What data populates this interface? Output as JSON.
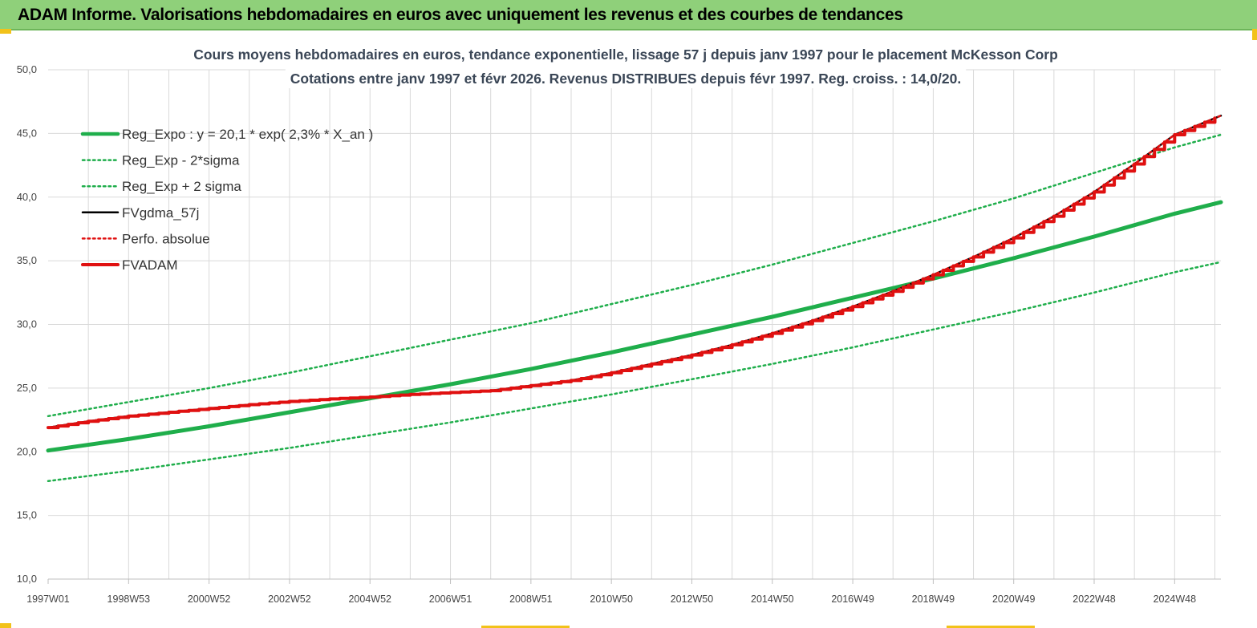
{
  "banner": {
    "title": "ADAM Informe. Valorisations hebdomadaires en euros avec uniquement les revenus et des courbes de tendances"
  },
  "colors": {
    "banner_bg": "#8fd07a",
    "accent_yellow": "#f2c21a",
    "reg_green": "#1fae4b",
    "fvadam_red": "#e01010",
    "fvgdma_black": "#000000",
    "grid": "#d9d9d9"
  },
  "chart_data": {
    "type": "line",
    "title_lines": [
      "Cours moyens hebdomadaires en euros, tendance exponentielle, lissage 57 j depuis janv 1997 pour le placement McKesson Corp",
      "Cotations entre janv 1997 et févr 2026. Revenus DISTRIBUES depuis févr 1997. Reg. croiss. : 14,0/20."
    ],
    "ylim": [
      10,
      50
    ],
    "y_ticks": [
      "10,0",
      "15,0",
      "20,0",
      "25,0",
      "30,0",
      "35,0",
      "40,0",
      "45,0",
      "50,0"
    ],
    "x_range_years": [
      1997.0,
      2026.15
    ],
    "x_ticks": [
      "1997W01",
      "1998W53",
      "2000W52",
      "2002W52",
      "2004W52",
      "2006W51",
      "2008W51",
      "2010W50",
      "2012W50",
      "2014W50",
      "2016W49",
      "2018W49",
      "2020W49",
      "2022W48",
      "2024W48"
    ],
    "grid": true,
    "legend_position": "top-left",
    "series": [
      {
        "name": "Reg_Expo : y = 20,1 * exp( 2,3% *  X_an )",
        "style": "solid-thick",
        "color": "#1fae4b",
        "x": [
          1997.0,
          1999.0,
          2001.0,
          2003.0,
          2005.0,
          2007.0,
          2009.0,
          2011.0,
          2013.0,
          2015.0,
          2017.0,
          2019.0,
          2021.0,
          2023.0,
          2025.0,
          2026.15
        ],
        "values": [
          20.1,
          21.0,
          22.0,
          23.1,
          24.2,
          25.3,
          26.5,
          27.8,
          29.2,
          30.6,
          32.1,
          33.6,
          35.2,
          36.9,
          38.7,
          39.6
        ]
      },
      {
        "name": "Reg_Exp - 2*sigma",
        "style": "dotted",
        "color": "#1fae4b",
        "x": [
          1997.0,
          1999.0,
          2001.0,
          2003.0,
          2005.0,
          2007.0,
          2009.0,
          2011.0,
          2013.0,
          2015.0,
          2017.0,
          2019.0,
          2021.0,
          2023.0,
          2025.0,
          2026.15
        ],
        "values": [
          17.7,
          18.5,
          19.4,
          20.3,
          21.3,
          22.3,
          23.4,
          24.5,
          25.7,
          26.9,
          28.2,
          29.6,
          31.0,
          32.5,
          34.1,
          34.9
        ]
      },
      {
        "name": "Reg_Exp + 2 sigma",
        "style": "dotted",
        "color": "#1fae4b",
        "x": [
          1997.0,
          1999.0,
          2001.0,
          2003.0,
          2005.0,
          2007.0,
          2009.0,
          2011.0,
          2013.0,
          2015.0,
          2017.0,
          2019.0,
          2021.0,
          2023.0,
          2025.0,
          2026.15
        ],
        "values": [
          22.8,
          23.9,
          25.0,
          26.2,
          27.5,
          28.8,
          30.1,
          31.6,
          33.1,
          34.7,
          36.4,
          38.1,
          39.9,
          41.9,
          43.9,
          44.9
        ]
      },
      {
        "name": "FVgdma_57j",
        "style": "solid",
        "color": "#000000",
        "x": [
          1997.0,
          1998.0,
          1999.0,
          2000.0,
          2001.0,
          2002.0,
          2003.0,
          2004.0,
          2005.0,
          2006.0,
          2007.0,
          2008.0,
          2009.0,
          2010.0,
          2011.0,
          2012.0,
          2013.0,
          2014.0,
          2015.0,
          2016.0,
          2017.0,
          2018.0,
          2019.0,
          2020.0,
          2021.0,
          2022.0,
          2023.0,
          2024.0,
          2025.0,
          2026.15
        ],
        "values": [
          21.9,
          22.4,
          22.8,
          23.1,
          23.4,
          23.7,
          23.95,
          24.15,
          24.3,
          24.5,
          24.65,
          24.8,
          25.2,
          25.6,
          26.2,
          26.9,
          27.6,
          28.4,
          29.3,
          30.3,
          31.4,
          32.6,
          33.9,
          35.3,
          36.8,
          38.5,
          40.4,
          42.6,
          44.9,
          46.4
        ]
      },
      {
        "name": "Perfo. absolue",
        "style": "dotted",
        "color": "#e01010",
        "x": [
          1997.0,
          1998.0,
          1999.0,
          2000.0,
          2001.0,
          2002.0,
          2003.0,
          2004.0,
          2005.0,
          2006.0,
          2007.0,
          2008.0,
          2009.0,
          2010.0,
          2011.0,
          2012.0,
          2013.0,
          2014.0,
          2015.0,
          2016.0,
          2017.0,
          2018.0,
          2019.0,
          2020.0,
          2021.0,
          2022.0,
          2023.0,
          2024.0,
          2025.0,
          2026.15
        ],
        "values": [
          21.9,
          22.4,
          22.8,
          23.1,
          23.4,
          23.7,
          23.95,
          24.15,
          24.3,
          24.5,
          24.65,
          24.8,
          25.2,
          25.6,
          26.2,
          26.9,
          27.6,
          28.4,
          29.3,
          30.3,
          31.4,
          32.6,
          33.9,
          35.3,
          36.8,
          38.5,
          40.4,
          42.6,
          44.9,
          46.4
        ]
      },
      {
        "name": "FVADAM",
        "style": "solid-thick-stepped",
        "color": "#e01010",
        "x": [
          1997.0,
          1998.0,
          1999.0,
          2000.0,
          2001.0,
          2002.0,
          2003.0,
          2004.0,
          2005.0,
          2006.0,
          2007.0,
          2008.0,
          2009.0,
          2010.0,
          2011.0,
          2012.0,
          2013.0,
          2014.0,
          2015.0,
          2016.0,
          2017.0,
          2018.0,
          2019.0,
          2020.0,
          2021.0,
          2022.0,
          2023.0,
          2024.0,
          2025.0,
          2026.15
        ],
        "values": [
          21.9,
          22.4,
          22.8,
          23.1,
          23.4,
          23.7,
          23.95,
          24.15,
          24.3,
          24.5,
          24.65,
          24.8,
          25.2,
          25.6,
          26.2,
          26.9,
          27.6,
          28.4,
          29.3,
          30.3,
          31.4,
          32.6,
          33.9,
          35.3,
          36.8,
          38.5,
          40.4,
          42.6,
          44.9,
          46.4
        ]
      }
    ]
  }
}
